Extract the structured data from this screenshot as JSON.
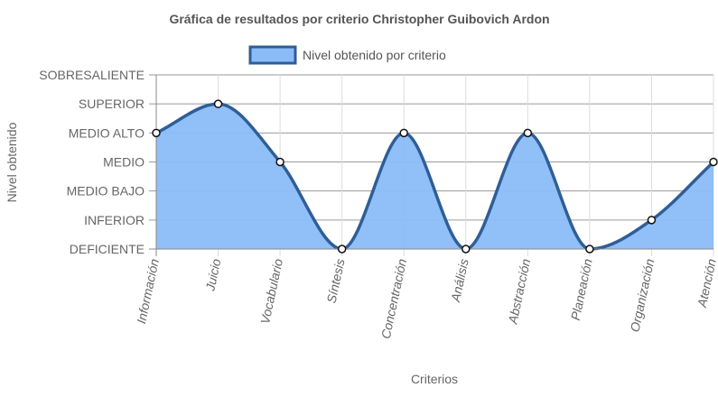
{
  "chart_data": {
    "type": "area",
    "title": "Gráfica de resultados por criterio Christopher Guibovich Ardon",
    "xlabel": "Criterios",
    "ylabel": "Nivel obtenido",
    "y_levels": [
      "DEFICIENTE",
      "INFERIOR",
      "MEDIO BAJO",
      "MEDIO",
      "MEDIO ALTO",
      "SUPERIOR",
      "SOBRESALIENTE"
    ],
    "ylim": [
      0,
      6
    ],
    "categories": [
      "Información",
      "Juicio",
      "Vocabulario",
      "Síntesis",
      "Concentración",
      "Análisis",
      "Abstracción",
      "Planeación",
      "Organización",
      "Atención"
    ],
    "series": [
      {
        "name": "Nivel obtenido por criterio",
        "values": [
          4,
          5,
          3,
          0,
          4,
          0,
          4,
          0,
          1,
          3
        ],
        "line_color": "#2f5e97",
        "fill_color": "#8bbcf7"
      }
    ],
    "grid": true,
    "legend_position": "top"
  }
}
